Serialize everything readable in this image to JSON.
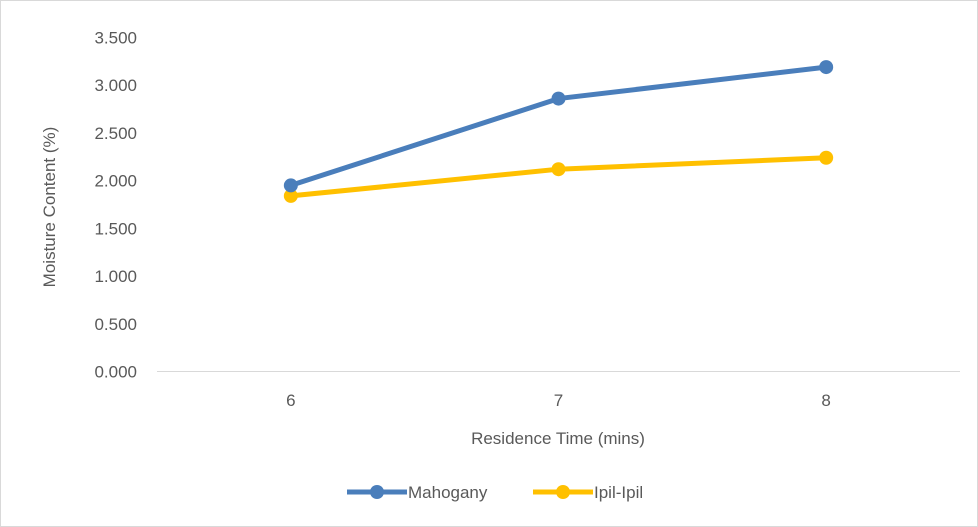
{
  "chart_data": {
    "type": "line",
    "title": "",
    "xlabel": "Residence Time (mins)",
    "ylabel": "Moisture Content (%)",
    "categories": [
      "6",
      "7",
      "8"
    ],
    "ylim": [
      0,
      3.5
    ],
    "yticks": [
      "0.000",
      "0.500",
      "1.000",
      "1.500",
      "2.000",
      "2.500",
      "3.000",
      "3.500"
    ],
    "grid": false,
    "legend_position": "bottom",
    "series": [
      {
        "name": "Mahogany",
        "values": [
          1.95,
          2.86,
          3.19
        ],
        "color": "#4a7ebb"
      },
      {
        "name": "Ipil-Ipil",
        "values": [
          1.84,
          2.12,
          2.24
        ],
        "color": "#ffc000"
      }
    ]
  }
}
